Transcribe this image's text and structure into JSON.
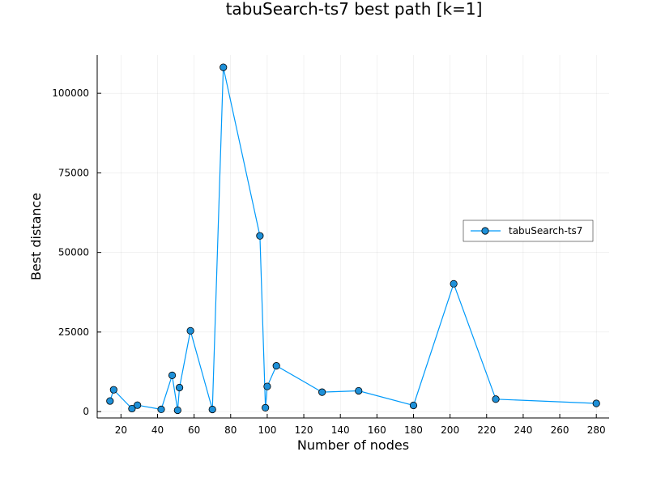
{
  "chart_data": {
    "type": "line",
    "title": "tabuSearch-ts7 best path [k=1]",
    "xlabel": "Number of nodes",
    "ylabel": "Best distance",
    "xlim": [
      7,
      287
    ],
    "ylim": [
      -2000,
      112000
    ],
    "xticks": [
      20,
      40,
      60,
      80,
      100,
      120,
      140,
      160,
      180,
      200,
      220,
      240,
      260,
      280
    ],
    "yticks": [
      0,
      25000,
      50000,
      75000,
      100000
    ],
    "grid": true,
    "legend_position": "right",
    "series": [
      {
        "name": "tabuSearch-ts7",
        "color": "#009AFA",
        "marker_color": "#1E90D8",
        "points": [
          [
            14,
            3323
          ],
          [
            16,
            6859
          ],
          [
            26,
            937
          ],
          [
            29,
            2020
          ],
          [
            42,
            699
          ],
          [
            48,
            11394
          ],
          [
            51,
            426
          ],
          [
            52,
            7542
          ],
          [
            58,
            25395
          ],
          [
            70,
            675
          ],
          [
            76,
            108159
          ],
          [
            96,
            55209
          ],
          [
            99,
            1211
          ],
          [
            100,
            7910
          ],
          [
            105,
            14379
          ],
          [
            130,
            6110
          ],
          [
            150,
            6528
          ],
          [
            180,
            1950
          ],
          [
            202,
            40160
          ],
          [
            225,
            3916
          ],
          [
            280,
            2579
          ]
        ]
      }
    ]
  }
}
